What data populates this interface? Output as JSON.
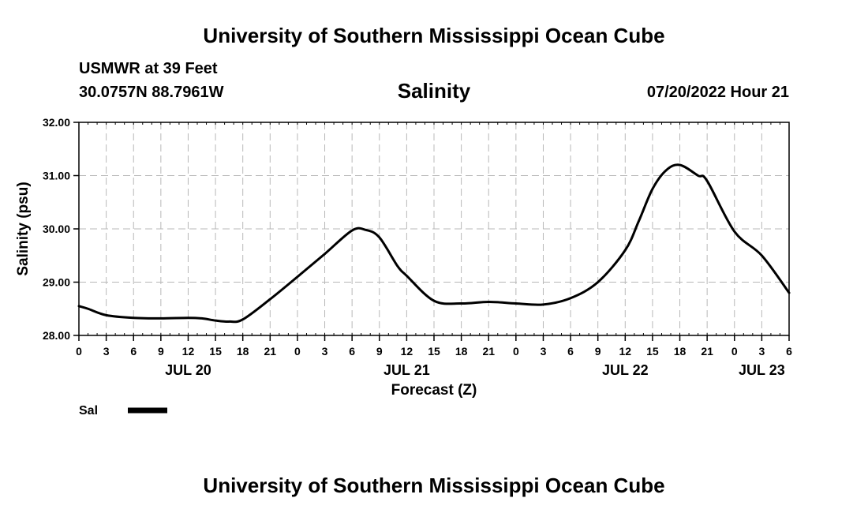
{
  "header": {
    "title": "University of Southern Mississippi Ocean Cube",
    "station": "USMWR at 39 Feet",
    "coordinates": "30.0757N  88.7961W",
    "variable_title": "Salinity",
    "timestamp": "07/20/2022 Hour 21"
  },
  "footer": {
    "title": "University of Southern Mississippi Ocean Cube"
  },
  "chart_data": {
    "type": "line",
    "title": "Salinity",
    "xlabel": "Forecast (Z)",
    "ylabel": "Salinity (psu)",
    "ylim": [
      28.0,
      32.0
    ],
    "xlim_hours": [
      0,
      78
    ],
    "y_ticks": [
      "28.00",
      "29.00",
      "30.00",
      "31.00",
      "32.00"
    ],
    "x_tick_labels": [
      "0",
      "3",
      "6",
      "9",
      "12",
      "15",
      "18",
      "21",
      "0",
      "3",
      "6",
      "9",
      "12",
      "15",
      "18",
      "21",
      "0",
      "3",
      "6",
      "9",
      "12",
      "15",
      "18",
      "21",
      "0",
      "3",
      "6"
    ],
    "day_labels": [
      {
        "label": "JUL 20",
        "hour": 12
      },
      {
        "label": "JUL 21",
        "hour": 36
      },
      {
        "label": "JUL 22",
        "hour": 60
      },
      {
        "label": "JUL 23",
        "hour": 75
      }
    ],
    "grid": true,
    "legend": [
      {
        "name": "Sal",
        "color": "#000000"
      }
    ],
    "series": [
      {
        "name": "Sal",
        "color": "#000000",
        "x": [
          0,
          1,
          3,
          6,
          9,
          12,
          13.5,
          15,
          16.5,
          18,
          21,
          24,
          27,
          30,
          31.5,
          33,
          35,
          36,
          39,
          42,
          45,
          48,
          51,
          54,
          57,
          60,
          61.5,
          63,
          64.5,
          66,
          68,
          69,
          72,
          75,
          78
        ],
        "values": [
          28.55,
          28.5,
          28.38,
          28.33,
          28.32,
          28.33,
          28.32,
          28.28,
          28.26,
          28.3,
          28.68,
          29.1,
          29.53,
          29.97,
          29.98,
          29.84,
          29.3,
          29.12,
          28.65,
          28.6,
          28.63,
          28.6,
          28.58,
          28.7,
          29.0,
          29.6,
          30.15,
          30.75,
          31.1,
          31.2,
          31.0,
          30.9,
          29.95,
          29.5,
          28.8
        ]
      }
    ]
  }
}
